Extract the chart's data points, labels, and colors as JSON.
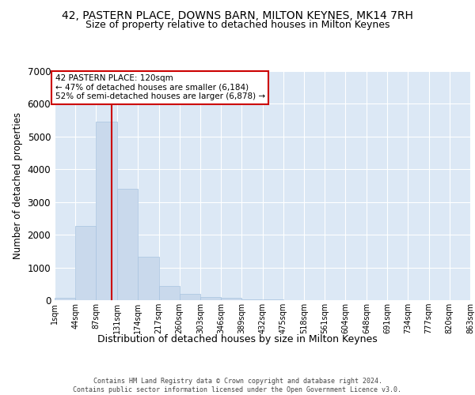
{
  "title1": "42, PASTERN PLACE, DOWNS BARN, MILTON KEYNES, MK14 7RH",
  "title2": "Size of property relative to detached houses in Milton Keynes",
  "xlabel": "Distribution of detached houses by size in Milton Keynes",
  "ylabel": "Number of detached properties",
  "bar_edges": [
    1,
    44,
    87,
    131,
    174,
    217,
    260,
    303,
    346,
    389,
    432,
    475,
    518,
    561,
    604,
    648,
    691,
    734,
    777,
    820,
    863
  ],
  "bar_heights": [
    75,
    2280,
    5450,
    3400,
    1320,
    440,
    205,
    95,
    65,
    30,
    15,
    10,
    8,
    5,
    4,
    3,
    2,
    2,
    1,
    1
  ],
  "bar_color": "#c9d9ec",
  "bar_edgecolor": "#a8c4e0",
  "property_value": 120,
  "vline_color": "#cc0000",
  "annotation_text": "42 PASTERN PLACE: 120sqm\n← 47% of detached houses are smaller (6,184)\n52% of semi-detached houses are larger (6,878) →",
  "annotation_box_edgecolor": "#cc0000",
  "ylim": [
    0,
    7000
  ],
  "yticks": [
    0,
    1000,
    2000,
    3000,
    4000,
    5000,
    6000,
    7000
  ],
  "background_color": "#ffffff",
  "plot_background_color": "#dce8f5",
  "grid_color": "#ffffff",
  "footer_text": "Contains HM Land Registry data © Crown copyright and database right 2024.\nContains public sector information licensed under the Open Government Licence v3.0.",
  "tick_label_fontsize": 7,
  "title1_fontsize": 10,
  "title2_fontsize": 9,
  "ylabel_fontsize": 8.5,
  "xlabel_fontsize": 9
}
